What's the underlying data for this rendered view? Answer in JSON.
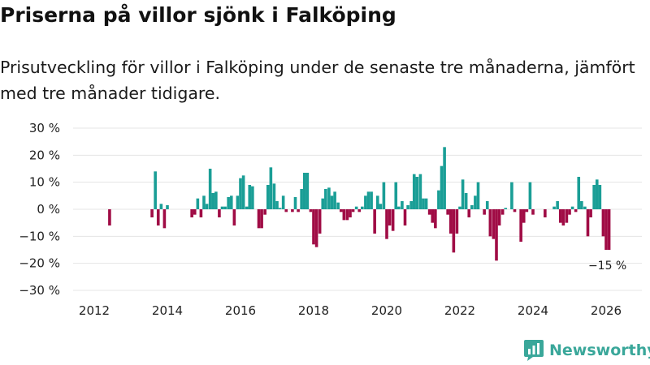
{
  "header": {
    "title": "Priserna på villor sjönk i Falköping",
    "subtitle": "Prisutveckling för villor i Falköping under de senaste tre månaderna, jämfört med tre månader tidigare."
  },
  "brand": {
    "name": "Newsworthy",
    "icon": "newsworthy-logo-icon"
  },
  "colors": {
    "positive": "#1a9e96",
    "negative": "#a00c45",
    "grid": "#e4e4e4",
    "brand": "#3aa79a"
  },
  "chart_data": {
    "type": "bar",
    "title": "Priserna på villor sjönk i Falköping",
    "xlabel": "",
    "ylabel": "",
    "unit": "%",
    "ylim": [
      -30,
      30
    ],
    "y_ticks": [
      30,
      20,
      10,
      0,
      -10,
      -20,
      -30
    ],
    "y_tick_labels": [
      "30 %",
      "20 %",
      "10 %",
      "0 %",
      "−10 %",
      "−20 %",
      "−30 %"
    ],
    "x_ticks": [
      "2012",
      "2014",
      "2016",
      "2018",
      "2020",
      "2022",
      "2024",
      "2026"
    ],
    "x_range": [
      2011.5,
      2026.5
    ],
    "last_value_label": "−15 %",
    "points": [
      {
        "x": 2012.42,
        "y": -6
      },
      {
        "x": 2013.58,
        "y": -3
      },
      {
        "x": 2013.67,
        "y": 14
      },
      {
        "x": 2013.75,
        "y": -6
      },
      {
        "x": 2013.83,
        "y": 2
      },
      {
        "x": 2013.92,
        "y": -7
      },
      {
        "x": 2014.0,
        "y": 1.5
      },
      {
        "x": 2014.67,
        "y": -3
      },
      {
        "x": 2014.75,
        "y": -2
      },
      {
        "x": 2014.83,
        "y": 4
      },
      {
        "x": 2014.92,
        "y": -3
      },
      {
        "x": 2015.0,
        "y": 5
      },
      {
        "x": 2015.08,
        "y": 2
      },
      {
        "x": 2015.17,
        "y": 15
      },
      {
        "x": 2015.25,
        "y": 6
      },
      {
        "x": 2015.33,
        "y": 6.5
      },
      {
        "x": 2015.42,
        "y": -3
      },
      {
        "x": 2015.5,
        "y": 1
      },
      {
        "x": 2015.58,
        "y": 1
      },
      {
        "x": 2015.67,
        "y": 4.5
      },
      {
        "x": 2015.75,
        "y": 5
      },
      {
        "x": 2015.83,
        "y": -6
      },
      {
        "x": 2015.92,
        "y": 5
      },
      {
        "x": 2016.0,
        "y": 11.5
      },
      {
        "x": 2016.08,
        "y": 12.5
      },
      {
        "x": 2016.17,
        "y": 1
      },
      {
        "x": 2016.25,
        "y": 9
      },
      {
        "x": 2016.33,
        "y": 8.5
      },
      {
        "x": 2016.5,
        "y": -7
      },
      {
        "x": 2016.58,
        "y": -7
      },
      {
        "x": 2016.67,
        "y": -2
      },
      {
        "x": 2016.75,
        "y": 9
      },
      {
        "x": 2016.83,
        "y": 15.5
      },
      {
        "x": 2016.92,
        "y": 9.5
      },
      {
        "x": 2017.0,
        "y": 3
      },
      {
        "x": 2017.08,
        "y": 0.5
      },
      {
        "x": 2017.17,
        "y": 5
      },
      {
        "x": 2017.25,
        "y": -1
      },
      {
        "x": 2017.42,
        "y": -1
      },
      {
        "x": 2017.5,
        "y": 4.5
      },
      {
        "x": 2017.58,
        "y": -1
      },
      {
        "x": 2017.67,
        "y": 7.5
      },
      {
        "x": 2017.75,
        "y": 13.5
      },
      {
        "x": 2017.83,
        "y": 13.5
      },
      {
        "x": 2017.92,
        "y": -1
      },
      {
        "x": 2018.0,
        "y": -13
      },
      {
        "x": 2018.08,
        "y": -14
      },
      {
        "x": 2018.17,
        "y": -9
      },
      {
        "x": 2018.25,
        "y": 4
      },
      {
        "x": 2018.33,
        "y": 7.5
      },
      {
        "x": 2018.42,
        "y": 8
      },
      {
        "x": 2018.5,
        "y": 5
      },
      {
        "x": 2018.58,
        "y": 6.5
      },
      {
        "x": 2018.67,
        "y": 2.5
      },
      {
        "x": 2018.75,
        "y": -1
      },
      {
        "x": 2018.83,
        "y": -4
      },
      {
        "x": 2018.92,
        "y": -4
      },
      {
        "x": 2019.0,
        "y": -3
      },
      {
        "x": 2019.08,
        "y": -1
      },
      {
        "x": 2019.17,
        "y": 1
      },
      {
        "x": 2019.25,
        "y": -1
      },
      {
        "x": 2019.33,
        "y": 1
      },
      {
        "x": 2019.42,
        "y": 5
      },
      {
        "x": 2019.5,
        "y": 6.5
      },
      {
        "x": 2019.58,
        "y": 6.5
      },
      {
        "x": 2019.67,
        "y": -9
      },
      {
        "x": 2019.75,
        "y": 5
      },
      {
        "x": 2019.83,
        "y": 2
      },
      {
        "x": 2019.92,
        "y": 10
      },
      {
        "x": 2020.0,
        "y": -11
      },
      {
        "x": 2020.08,
        "y": -6
      },
      {
        "x": 2020.17,
        "y": -8
      },
      {
        "x": 2020.25,
        "y": 10
      },
      {
        "x": 2020.33,
        "y": 1
      },
      {
        "x": 2020.42,
        "y": 3
      },
      {
        "x": 2020.5,
        "y": -6
      },
      {
        "x": 2020.58,
        "y": 1.5
      },
      {
        "x": 2020.67,
        "y": 3
      },
      {
        "x": 2020.75,
        "y": 13
      },
      {
        "x": 2020.83,
        "y": 12
      },
      {
        "x": 2020.92,
        "y": 13
      },
      {
        "x": 2021.0,
        "y": 4
      },
      {
        "x": 2021.08,
        "y": 4
      },
      {
        "x": 2021.17,
        "y": -2
      },
      {
        "x": 2021.25,
        "y": -5
      },
      {
        "x": 2021.33,
        "y": -7
      },
      {
        "x": 2021.42,
        "y": 7
      },
      {
        "x": 2021.5,
        "y": 16
      },
      {
        "x": 2021.58,
        "y": 23
      },
      {
        "x": 2021.67,
        "y": -2
      },
      {
        "x": 2021.75,
        "y": -9
      },
      {
        "x": 2021.83,
        "y": -16
      },
      {
        "x": 2021.92,
        "y": -9
      },
      {
        "x": 2022.0,
        "y": 1
      },
      {
        "x": 2022.08,
        "y": 11
      },
      {
        "x": 2022.17,
        "y": 6
      },
      {
        "x": 2022.25,
        "y": -3
      },
      {
        "x": 2022.33,
        "y": 1.5
      },
      {
        "x": 2022.42,
        "y": 5
      },
      {
        "x": 2022.5,
        "y": 10
      },
      {
        "x": 2022.67,
        "y": -2
      },
      {
        "x": 2022.75,
        "y": 3
      },
      {
        "x": 2022.83,
        "y": -10
      },
      {
        "x": 2022.92,
        "y": -11
      },
      {
        "x": 2023.0,
        "y": -19
      },
      {
        "x": 2023.08,
        "y": -6
      },
      {
        "x": 2023.17,
        "y": -2
      },
      {
        "x": 2023.25,
        "y": 0.5
      },
      {
        "x": 2023.42,
        "y": 10
      },
      {
        "x": 2023.5,
        "y": -1
      },
      {
        "x": 2023.67,
        "y": -12
      },
      {
        "x": 2023.75,
        "y": -5
      },
      {
        "x": 2023.83,
        "y": -1
      },
      {
        "x": 2023.92,
        "y": 10
      },
      {
        "x": 2024.0,
        "y": -2
      },
      {
        "x": 2024.33,
        "y": -3
      },
      {
        "x": 2024.58,
        "y": 1
      },
      {
        "x": 2024.67,
        "y": 3
      },
      {
        "x": 2024.75,
        "y": -5
      },
      {
        "x": 2024.83,
        "y": -6
      },
      {
        "x": 2024.92,
        "y": -5
      },
      {
        "x": 2025.0,
        "y": -2
      },
      {
        "x": 2025.08,
        "y": 1
      },
      {
        "x": 2025.17,
        "y": -1
      },
      {
        "x": 2025.25,
        "y": 12
      },
      {
        "x": 2025.33,
        "y": 3
      },
      {
        "x": 2025.42,
        "y": 1
      },
      {
        "x": 2025.5,
        "y": -10
      },
      {
        "x": 2025.58,
        "y": -3
      },
      {
        "x": 2025.67,
        "y": 9
      },
      {
        "x": 2025.75,
        "y": 11
      },
      {
        "x": 2025.83,
        "y": 9
      },
      {
        "x": 2025.92,
        "y": -10
      },
      {
        "x": 2026.0,
        "y": -15
      },
      {
        "x": 2026.08,
        "y": -15
      }
    ]
  }
}
